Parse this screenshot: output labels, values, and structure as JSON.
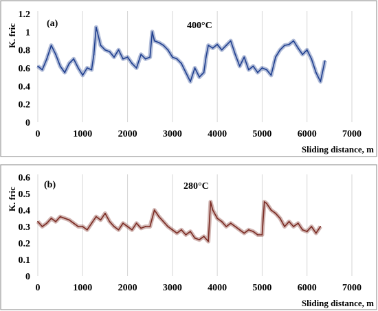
{
  "chart_data": [
    {
      "type": "line",
      "panel_label": "(a)",
      "annotation": "400°C",
      "ylabel": "K. fric",
      "xlabel": "Sliding distance, m",
      "xlim": [
        0,
        7000
      ],
      "ylim": [
        0,
        1.2
      ],
      "xticks": [
        0,
        1000,
        2000,
        3000,
        4000,
        5000,
        6000,
        7000
      ],
      "yticks": [
        0,
        0.2,
        0.4,
        0.6,
        0.8,
        1,
        1.2
      ],
      "grid": "vertical",
      "line_color": "#1f3f8f",
      "series": [
        {
          "x": [
            0,
            100,
            200,
            300,
            400,
            500,
            600,
            700,
            800,
            900,
            1000,
            1100,
            1200,
            1250,
            1300,
            1400,
            1500,
            1600,
            1700,
            1800,
            1900,
            2000,
            2100,
            2200,
            2300,
            2400,
            2500,
            2550,
            2600,
            2700,
            2800,
            2900,
            3000,
            3100,
            3200,
            3300,
            3400,
            3500,
            3600,
            3700,
            3750,
            3800,
            3900,
            4000,
            4100,
            4200,
            4300,
            4400,
            4500,
            4600,
            4700,
            4800,
            4900,
            5000,
            5100,
            5200,
            5300,
            5400,
            5500,
            5600,
            5700,
            5800,
            5900,
            6000,
            6100,
            6200,
            6300,
            6400
          ],
          "values": [
            0.62,
            0.58,
            0.7,
            0.85,
            0.75,
            0.62,
            0.55,
            0.65,
            0.7,
            0.6,
            0.52,
            0.6,
            0.58,
            0.75,
            1.05,
            0.85,
            0.8,
            0.78,
            0.72,
            0.8,
            0.7,
            0.72,
            0.65,
            0.6,
            0.75,
            0.7,
            0.72,
            1.0,
            0.9,
            0.88,
            0.85,
            0.8,
            0.72,
            0.7,
            0.65,
            0.55,
            0.45,
            0.6,
            0.5,
            0.55,
            0.72,
            0.85,
            0.82,
            0.86,
            0.8,
            0.85,
            0.9,
            0.75,
            0.62,
            0.72,
            0.58,
            0.62,
            0.55,
            0.6,
            0.58,
            0.52,
            0.72,
            0.8,
            0.85,
            0.86,
            0.9,
            0.82,
            0.75,
            0.8,
            0.7,
            0.55,
            0.45,
            0.68
          ]
        }
      ]
    },
    {
      "type": "line",
      "panel_label": "(b)",
      "annotation": "280°C",
      "ylabel": "K. fric",
      "xlabel": "Sliding distance, m",
      "xlim": [
        0,
        7000
      ],
      "ylim": [
        0,
        0.6
      ],
      "xticks": [
        0,
        1000,
        2000,
        3000,
        4000,
        5000,
        6000,
        7000
      ],
      "yticks": [
        0,
        0.1,
        0.2,
        0.3,
        0.4,
        0.5,
        0.6
      ],
      "grid": "vertical",
      "line_color": "#7a2a22",
      "series": [
        {
          "x": [
            0,
            100,
            200,
            300,
            400,
            500,
            600,
            700,
            800,
            900,
            1000,
            1100,
            1200,
            1300,
            1400,
            1500,
            1600,
            1700,
            1800,
            1900,
            2000,
            2100,
            2200,
            2300,
            2400,
            2500,
            2600,
            2700,
            2800,
            2900,
            3000,
            3100,
            3200,
            3300,
            3400,
            3500,
            3600,
            3700,
            3800,
            3850,
            3900,
            4000,
            4100,
            4200,
            4300,
            4400,
            4500,
            4600,
            4700,
            4800,
            4900,
            5000,
            5050,
            5100,
            5200,
            5300,
            5400,
            5500,
            5600,
            5700,
            5800,
            5900,
            6000,
            6100,
            6200,
            6300
          ],
          "values": [
            0.33,
            0.3,
            0.32,
            0.35,
            0.33,
            0.36,
            0.35,
            0.34,
            0.32,
            0.3,
            0.3,
            0.28,
            0.32,
            0.36,
            0.34,
            0.38,
            0.33,
            0.3,
            0.28,
            0.32,
            0.3,
            0.28,
            0.32,
            0.29,
            0.3,
            0.3,
            0.4,
            0.36,
            0.33,
            0.3,
            0.28,
            0.26,
            0.28,
            0.25,
            0.27,
            0.23,
            0.22,
            0.24,
            0.21,
            0.45,
            0.4,
            0.35,
            0.33,
            0.3,
            0.32,
            0.3,
            0.28,
            0.26,
            0.28,
            0.27,
            0.25,
            0.25,
            0.45,
            0.44,
            0.4,
            0.38,
            0.35,
            0.3,
            0.33,
            0.3,
            0.32,
            0.28,
            0.27,
            0.3,
            0.26,
            0.3
          ]
        }
      ]
    }
  ]
}
